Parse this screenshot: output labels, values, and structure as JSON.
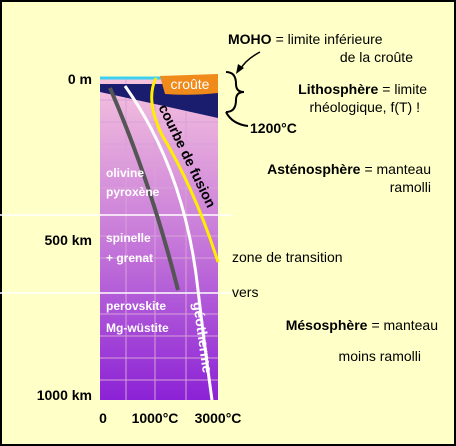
{
  "axis": {
    "depth_labels": [
      "0 m",
      "500 km",
      "1000 km"
    ],
    "temperature_labels": [
      "0",
      "1000°C",
      "3000°C"
    ]
  },
  "plot_labels": {
    "crust": "croûte",
    "melting_curve": "courbe de fusion",
    "geotherm": "géotherme",
    "isotherm": "1200°C"
  },
  "minerals": [
    [
      "olivine",
      "pyroxène"
    ],
    [
      "spinelle",
      "+ grenat"
    ],
    [
      "perovskite",
      "Mg-wüstite"
    ]
  ],
  "layers": [
    {
      "term": "MOHO",
      "lines": [
        "= limite inférieure",
        "de la croûte"
      ]
    },
    {
      "term": "Lithosphère",
      "lines": [
        "= limite",
        "rhéologique, f(T) !"
      ]
    },
    {
      "term": "Asténosphère",
      "lines": [
        "= manteau",
        "ramolli"
      ]
    },
    {
      "term": "Mésosphère",
      "lines": [
        "= manteau",
        "moins ramolli"
      ]
    }
  ],
  "transition": [
    "zone de transition",
    "vers"
  ]
}
